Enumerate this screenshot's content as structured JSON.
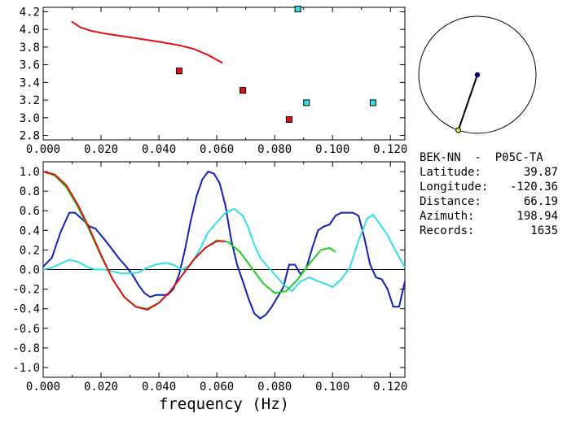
{
  "station_info": {
    "header": "BEK-NN  -  P05C-TA",
    "rows": [
      {
        "label": "Latitude:",
        "value": "39.87"
      },
      {
        "label": "Longitude:",
        "value": "-120.36"
      },
      {
        "label": "Distance:",
        "value": "66.19"
      },
      {
        "label": "Azimuth:",
        "value": "198.94"
      },
      {
        "label": "Records:",
        "value": "1635"
      }
    ]
  },
  "colors": {
    "red": "#e01010",
    "blue": "#1020c0",
    "cyan": "#30e0e8",
    "green": "#20d020",
    "axis": "#000000",
    "dot": "#00008b",
    "end_marker": "#e0e040"
  },
  "chart_data": [
    {
      "type": "scatter",
      "title": "",
      "xlabel": "",
      "ylabel": "",
      "xlim": [
        0.0,
        0.125
      ],
      "ylim": [
        2.75,
        4.25
      ],
      "x_ticks": [
        "0.000",
        "0.020",
        "0.040",
        "0.060",
        "0.080",
        "0.100",
        "0.120"
      ],
      "y_ticks": [
        "2.8",
        "3.0",
        "3.2",
        "3.4",
        "3.6",
        "3.8",
        "4.0",
        "4.2"
      ],
      "line": {
        "color": "red",
        "points": [
          [
            0.0098,
            4.09
          ],
          [
            0.013,
            4.02
          ],
          [
            0.017,
            3.98
          ],
          [
            0.022,
            3.95
          ],
          [
            0.03,
            3.91
          ],
          [
            0.04,
            3.86
          ],
          [
            0.047,
            3.82
          ],
          [
            0.052,
            3.78
          ],
          [
            0.057,
            3.71
          ],
          [
            0.062,
            3.62
          ]
        ]
      },
      "markers": [
        {
          "x": 0.047,
          "y": 3.53,
          "color": "red"
        },
        {
          "x": 0.069,
          "y": 3.31,
          "color": "red"
        },
        {
          "x": 0.085,
          "y": 2.98,
          "color": "red"
        },
        {
          "x": 0.088,
          "y": 4.23,
          "color": "cyan"
        },
        {
          "x": 0.091,
          "y": 3.17,
          "color": "cyan"
        },
        {
          "x": 0.114,
          "y": 3.17,
          "color": "cyan"
        }
      ]
    },
    {
      "type": "line",
      "title": "",
      "xlabel": "frequency (Hz)",
      "ylabel": "",
      "xlim": [
        0.0,
        0.125
      ],
      "ylim": [
        -1.1,
        1.1
      ],
      "x_ticks": [
        "0.000",
        "0.020",
        "0.040",
        "0.060",
        "0.080",
        "0.100",
        "0.120"
      ],
      "y_ticks": [
        "1.0",
        "0.8",
        "0.6",
        "0.4",
        "0.2",
        "0.0",
        "-0.2",
        "-0.4",
        "-0.6",
        "-0.8",
        "-1.0"
      ],
      "series": [
        {
          "color": "blue",
          "points": [
            [
              0.0,
              0.03
            ],
            [
              0.003,
              0.12
            ],
            [
              0.006,
              0.38
            ],
            [
              0.009,
              0.58
            ],
            [
              0.011,
              0.58
            ],
            [
              0.014,
              0.5
            ],
            [
              0.016,
              0.44
            ],
            [
              0.018,
              0.42
            ],
            [
              0.02,
              0.35
            ],
            [
              0.023,
              0.24
            ],
            [
              0.026,
              0.12
            ],
            [
              0.029,
              0.02
            ],
            [
              0.031,
              -0.06
            ],
            [
              0.033,
              -0.16
            ],
            [
              0.035,
              -0.24
            ],
            [
              0.037,
              -0.28
            ],
            [
              0.039,
              -0.26
            ],
            [
              0.041,
              -0.26
            ],
            [
              0.043,
              -0.26
            ],
            [
              0.045,
              -0.2
            ],
            [
              0.047,
              -0.05
            ],
            [
              0.049,
              0.2
            ],
            [
              0.051,
              0.5
            ],
            [
              0.053,
              0.75
            ],
            [
              0.055,
              0.92
            ],
            [
              0.057,
              1.0
            ],
            [
              0.059,
              0.98
            ],
            [
              0.061,
              0.88
            ],
            [
              0.063,
              0.65
            ],
            [
              0.065,
              0.3
            ],
            [
              0.067,
              0.05
            ],
            [
              0.069,
              -0.12
            ],
            [
              0.071,
              -0.3
            ],
            [
              0.073,
              -0.45
            ],
            [
              0.075,
              -0.5
            ],
            [
              0.077,
              -0.46
            ],
            [
              0.079,
              -0.38
            ],
            [
              0.081,
              -0.28
            ],
            [
              0.083,
              -0.18
            ],
            [
              0.085,
              0.05
            ],
            [
              0.087,
              0.05
            ],
            [
              0.089,
              -0.05
            ],
            [
              0.091,
              0.02
            ],
            [
              0.093,
              0.22
            ],
            [
              0.095,
              0.4
            ],
            [
              0.097,
              0.44
            ],
            [
              0.099,
              0.46
            ],
            [
              0.101,
              0.55
            ],
            [
              0.103,
              0.58
            ],
            [
              0.105,
              0.58
            ],
            [
              0.107,
              0.58
            ],
            [
              0.109,
              0.55
            ],
            [
              0.111,
              0.32
            ],
            [
              0.113,
              0.05
            ],
            [
              0.115,
              -0.08
            ],
            [
              0.117,
              -0.1
            ],
            [
              0.119,
              -0.2
            ],
            [
              0.121,
              -0.38
            ],
            [
              0.123,
              -0.38
            ],
            [
              0.125,
              -0.12
            ]
          ]
        },
        {
          "color": "cyan",
          "points": [
            [
              0.0,
              0.0
            ],
            [
              0.003,
              0.02
            ],
            [
              0.006,
              0.06
            ],
            [
              0.009,
              0.1
            ],
            [
              0.012,
              0.08
            ],
            [
              0.015,
              0.03
            ],
            [
              0.018,
              0.0
            ],
            [
              0.021,
              0.0
            ],
            [
              0.024,
              -0.02
            ],
            [
              0.027,
              -0.04
            ],
            [
              0.03,
              -0.04
            ],
            [
              0.033,
              -0.03
            ],
            [
              0.036,
              0.02
            ],
            [
              0.039,
              0.05
            ],
            [
              0.042,
              0.07
            ],
            [
              0.045,
              0.05
            ],
            [
              0.048,
              0.0
            ],
            [
              0.051,
              0.05
            ],
            [
              0.054,
              0.2
            ],
            [
              0.057,
              0.38
            ],
            [
              0.06,
              0.48
            ],
            [
              0.063,
              0.58
            ],
            [
              0.066,
              0.62
            ],
            [
              0.069,
              0.55
            ],
            [
              0.071,
              0.42
            ],
            [
              0.073,
              0.25
            ],
            [
              0.075,
              0.12
            ],
            [
              0.077,
              0.05
            ],
            [
              0.08,
              -0.05
            ],
            [
              0.083,
              -0.15
            ],
            [
              0.086,
              -0.22
            ],
            [
              0.089,
              -0.12
            ],
            [
              0.092,
              -0.08
            ],
            [
              0.095,
              -0.12
            ],
            [
              0.098,
              -0.15
            ],
            [
              0.1,
              -0.18
            ],
            [
              0.103,
              -0.1
            ],
            [
              0.106,
              0.02
            ],
            [
              0.109,
              0.3
            ],
            [
              0.112,
              0.52
            ],
            [
              0.114,
              0.56
            ],
            [
              0.116,
              0.48
            ],
            [
              0.119,
              0.35
            ],
            [
              0.122,
              0.18
            ],
            [
              0.125,
              0.02
            ]
          ]
        },
        {
          "color": "green",
          "points": [
            [
              0.0,
              1.0
            ],
            [
              0.004,
              0.96
            ],
            [
              0.008,
              0.84
            ],
            [
              0.012,
              0.64
            ],
            [
              0.016,
              0.4
            ],
            [
              0.02,
              0.14
            ],
            [
              0.024,
              -0.1
            ],
            [
              0.028,
              -0.28
            ],
            [
              0.032,
              -0.38
            ],
            [
              0.036,
              -0.4
            ],
            [
              0.04,
              -0.34
            ],
            [
              0.044,
              -0.22
            ],
            [
              0.048,
              -0.06
            ],
            [
              0.052,
              0.1
            ],
            [
              0.056,
              0.22
            ],
            [
              0.06,
              0.3
            ],
            [
              0.064,
              0.28
            ],
            [
              0.068,
              0.18
            ],
            [
              0.072,
              0.02
            ],
            [
              0.076,
              -0.14
            ],
            [
              0.08,
              -0.24
            ],
            [
              0.084,
              -0.22
            ],
            [
              0.088,
              -0.1
            ],
            [
              0.092,
              0.06
            ],
            [
              0.096,
              0.2
            ],
            [
              0.099,
              0.22
            ],
            [
              0.101,
              0.18
            ]
          ]
        },
        {
          "color": "red",
          "points": [
            [
              0.0,
              1.0
            ],
            [
              0.004,
              0.97
            ],
            [
              0.008,
              0.86
            ],
            [
              0.012,
              0.66
            ],
            [
              0.016,
              0.42
            ],
            [
              0.02,
              0.15
            ],
            [
              0.024,
              -0.1
            ],
            [
              0.028,
              -0.28
            ],
            [
              0.032,
              -0.38
            ],
            [
              0.036,
              -0.41
            ],
            [
              0.04,
              -0.34
            ],
            [
              0.044,
              -0.22
            ],
            [
              0.048,
              -0.06
            ],
            [
              0.052,
              0.1
            ],
            [
              0.056,
              0.22
            ],
            [
              0.06,
              0.29
            ],
            [
              0.063,
              0.29
            ]
          ]
        }
      ]
    },
    {
      "type": "other",
      "title": "",
      "description_free": true,
      "azimuth_deg": 198.94,
      "radius_fraction": 0.55
    }
  ]
}
